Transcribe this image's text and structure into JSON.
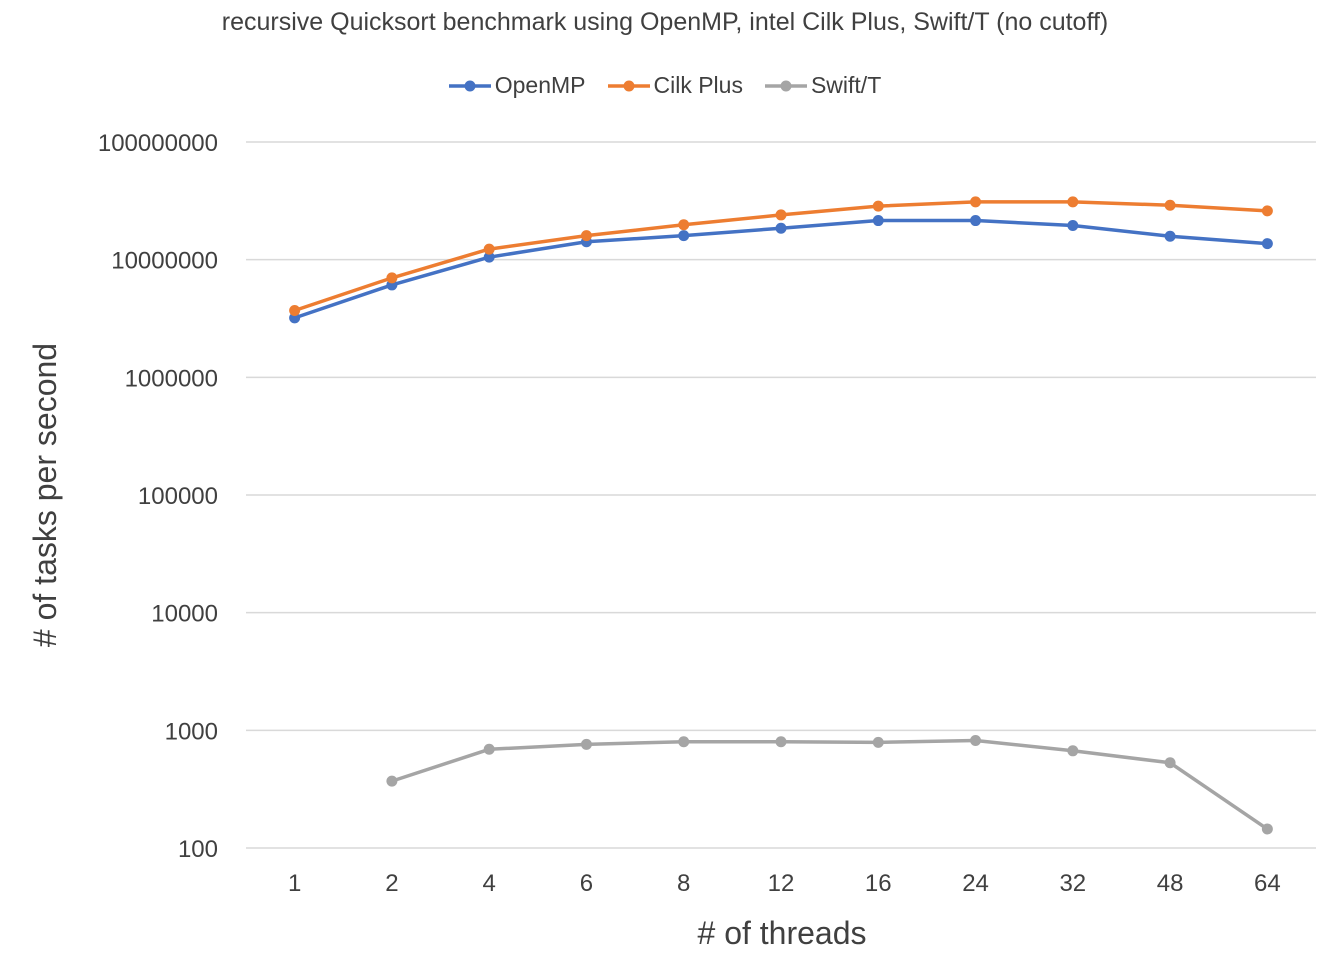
{
  "chart_data": {
    "type": "line",
    "title": "recursive Quicksort benchmark using OpenMP, intel Cilk Plus, Swift/T (no cutoff)",
    "xlabel": "# of threads",
    "ylabel": "# of tasks per second",
    "yscale": "log",
    "ylim": [
      100,
      100000000
    ],
    "yticks": [
      "100",
      "1000",
      "10000",
      "100000",
      "1000000",
      "10000000",
      "100000000"
    ],
    "categories": [
      "1",
      "2",
      "4",
      "6",
      "8",
      "12",
      "16",
      "24",
      "32",
      "48",
      "64"
    ],
    "grid": true,
    "legend": "top",
    "series": [
      {
        "name": "OpenMP",
        "color": "#4472c4",
        "values": [
          3200000,
          6100000,
          10500000,
          14200000,
          16000000,
          18500000,
          21500000,
          21500000,
          19500000,
          15800000,
          13700000
        ]
      },
      {
        "name": "Cilk Plus",
        "color": "#ed7d31",
        "values": [
          3700000,
          7000000,
          12300000,
          16000000,
          19800000,
          24000000,
          28500000,
          31000000,
          31000000,
          29000000,
          26000000
        ]
      },
      {
        "name": "Swift/T",
        "color": "#a5a5a5",
        "values": [
          null,
          370,
          690,
          760,
          800,
          800,
          790,
          820,
          670,
          530,
          145
        ]
      }
    ]
  }
}
